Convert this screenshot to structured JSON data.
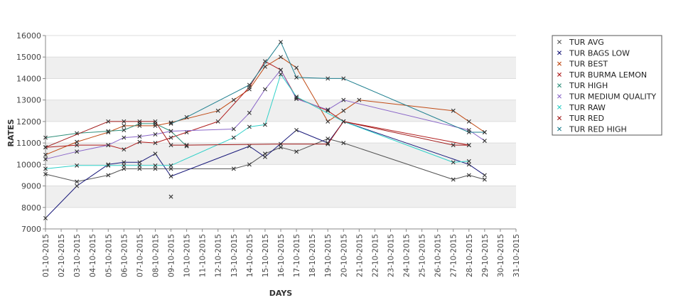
{
  "chart_data": {
    "type": "line",
    "title": "",
    "xlabel": "DAYS",
    "ylabel": "RATES",
    "ylim": [
      7000,
      16000
    ],
    "yticks": [
      7000,
      8000,
      9000,
      10000,
      11000,
      12000,
      13000,
      14000,
      15000,
      16000
    ],
    "x_ticks": [
      "01-10-2015",
      "02-10-2015",
      "03-10-2015",
      "04-10-2015",
      "05-10-2015",
      "06-10-2015",
      "07-10-2015",
      "08-10-2015",
      "09-10-2015",
      "10-10-2015",
      "11-10-2015",
      "12-10-2015",
      "13-10-2015",
      "14-10-2015",
      "15-10-2015",
      "16-10-2015",
      "17-10-2015",
      "18-10-2015",
      "19-10-2015",
      "20-10-2015",
      "21-10-2015",
      "22-10-2015",
      "23-10-2015",
      "24-10-2015",
      "25-10-2015",
      "26-10-2015",
      "27-10-2015",
      "28-10-2015",
      "29-10-2015",
      "30-10-2015",
      "31-10-2015"
    ],
    "grid": true,
    "legend_position": "right",
    "series": [
      {
        "name": "TUR AVG",
        "color": "#555555",
        "points": [
          [
            "01-10-2015",
            9550
          ],
          [
            "03-10-2015",
            9200
          ],
          [
            "05-10-2015",
            9500
          ],
          [
            "06-10-2015",
            9800
          ],
          [
            "07-10-2015",
            9800
          ],
          [
            "08-10-2015",
            9800
          ],
          [
            "09-10-2015",
            9800
          ],
          [
            "13-10-2015",
            9800
          ],
          [
            "14-10-2015",
            10000
          ],
          [
            "15-10-2015",
            10500
          ],
          [
            "16-10-2015",
            10800
          ],
          [
            "17-10-2015",
            10600
          ],
          [
            "19-10-2015",
            11200
          ],
          [
            "20-10-2015",
            11000
          ],
          [
            "27-10-2015",
            9300
          ],
          [
            "28-10-2015",
            9500
          ],
          [
            "29-10-2015",
            9300
          ]
        ]
      },
      {
        "name": "TUR BAGS LOW",
        "color": "#1a1a7a",
        "points": [
          [
            "01-10-2015",
            7500
          ],
          [
            "03-10-2015",
            9000
          ],
          [
            "05-10-2015",
            10000
          ],
          [
            "06-10-2015",
            10100
          ],
          [
            "07-10-2015",
            10100
          ],
          [
            "08-10-2015",
            10500
          ],
          [
            "09-10-2015",
            9450
          ],
          [
            "14-10-2015",
            10850
          ],
          [
            "15-10-2015",
            10350
          ],
          [
            "17-10-2015",
            11600
          ],
          [
            "19-10-2015",
            11000
          ],
          [
            "20-10-2015",
            12000
          ],
          [
            "28-10-2015",
            10000
          ],
          [
            "29-10-2015",
            9500
          ]
        ]
      },
      {
        "name": "TUR BEST",
        "color": "#c04a14",
        "points": [
          [
            "01-10-2015",
            10450
          ],
          [
            "03-10-2015",
            11050
          ],
          [
            "05-10-2015",
            11500
          ],
          [
            "06-10-2015",
            11800
          ],
          [
            "07-10-2015",
            11800
          ],
          [
            "08-10-2015",
            11800
          ],
          [
            "09-10-2015",
            11950
          ],
          [
            "12-10-2015",
            12500
          ],
          [
            "13-10-2015",
            13000
          ],
          [
            "14-10-2015",
            13500
          ],
          [
            "15-10-2015",
            14550
          ],
          [
            "16-10-2015",
            15000
          ],
          [
            "17-10-2015",
            14500
          ],
          [
            "19-10-2015",
            12000
          ],
          [
            "20-10-2015",
            12500
          ],
          [
            "21-10-2015",
            13000
          ],
          [
            "27-10-2015",
            12500
          ],
          [
            "28-10-2015",
            12000
          ],
          [
            "29-10-2015",
            11500
          ]
        ]
      },
      {
        "name": "TUR BURMA LEMON",
        "color": "#b01c1c",
        "points": [
          [
            "01-10-2015",
            10800
          ],
          [
            "03-10-2015",
            10900
          ],
          [
            "05-10-2015",
            10900
          ],
          [
            "06-10-2015",
            10700
          ],
          [
            "07-10-2015",
            11050
          ],
          [
            "08-10-2015",
            11000
          ],
          [
            "09-10-2015",
            11250
          ],
          [
            "10-10-2015",
            11500
          ],
          [
            "12-10-2015",
            12000
          ],
          [
            "14-10-2015",
            13600
          ],
          [
            "15-10-2015",
            14800
          ],
          [
            "16-10-2015",
            14400
          ],
          [
            "17-10-2015",
            13100
          ],
          [
            "19-10-2015",
            12500
          ],
          [
            "20-10-2015",
            12000
          ],
          [
            "28-10-2015",
            10900
          ]
        ]
      },
      {
        "name": "TUR HIGH",
        "color": "#2f8f7a",
        "points": [
          [
            "01-10-2015",
            11250
          ],
          [
            "03-10-2015",
            11450
          ],
          [
            "05-10-2015",
            11550
          ],
          [
            "06-10-2015",
            11600
          ],
          [
            "07-10-2015",
            11900
          ],
          [
            "08-10-2015",
            11900
          ],
          [
            "09-10-2015",
            11550
          ],
          [
            "10-10-2015",
            10850
          ]
        ]
      },
      {
        "name": "TUR MEDIUM QUALITY",
        "color": "#8a66c8",
        "points": [
          [
            "01-10-2015",
            10250
          ],
          [
            "03-10-2015",
            10600
          ],
          [
            "05-10-2015",
            10900
          ],
          [
            "06-10-2015",
            11250
          ],
          [
            "07-10-2015",
            11300
          ],
          [
            "08-10-2015",
            11400
          ],
          [
            "09-10-2015",
            11550
          ],
          [
            "13-10-2015",
            11650
          ],
          [
            "14-10-2015",
            12400
          ],
          [
            "15-10-2015",
            13500
          ],
          [
            "16-10-2015",
            14400
          ],
          [
            "17-10-2015",
            13050
          ],
          [
            "19-10-2015",
            12550
          ],
          [
            "20-10-2015",
            13000
          ],
          [
            "28-10-2015",
            11600
          ],
          [
            "29-10-2015",
            11100
          ]
        ]
      },
      {
        "name": "TUR RAW",
        "color": "#2fd0c8",
        "points": [
          [
            "01-10-2015",
            9800
          ],
          [
            "03-10-2015",
            9950
          ],
          [
            "05-10-2015",
            9950
          ],
          [
            "06-10-2015",
            9950
          ],
          [
            "07-10-2015",
            9950
          ],
          [
            "08-10-2015",
            9950
          ],
          [
            "09-10-2015",
            9950
          ],
          [
            "13-10-2015",
            11250
          ],
          [
            "14-10-2015",
            11750
          ],
          [
            "15-10-2015",
            11850
          ],
          [
            "16-10-2015",
            14200
          ],
          [
            "17-10-2015",
            13150
          ],
          [
            "20-10-2015",
            12000
          ],
          [
            "27-10-2015",
            10100
          ],
          [
            "28-10-2015",
            10150
          ]
        ]
      },
      {
        "name": "TUR RED",
        "color": "#a01818",
        "points": [
          [
            "01-10-2015",
            10800
          ],
          [
            "05-10-2015",
            12000
          ],
          [
            "06-10-2015",
            12000
          ],
          [
            "07-10-2015",
            12000
          ],
          [
            "08-10-2015",
            12000
          ],
          [
            "09-10-2015",
            10900
          ],
          [
            "10-10-2015",
            10900
          ],
          [
            "16-10-2015",
            10950
          ],
          [
            "19-10-2015",
            10950
          ],
          [
            "20-10-2015",
            12000
          ],
          [
            "27-10-2015",
            10900
          ],
          [
            "28-10-2015",
            10900
          ]
        ]
      },
      {
        "name": "TUR RED HIGH",
        "color": "#1f7f8f",
        "points": [
          [
            "09-10-2015",
            11900
          ],
          [
            "10-10-2015",
            12200
          ],
          [
            "14-10-2015",
            13700
          ],
          [
            "16-10-2015",
            15700
          ],
          [
            "17-10-2015",
            14050
          ],
          [
            "19-10-2015",
            14000
          ],
          [
            "20-10-2015",
            14000
          ],
          [
            "28-10-2015",
            11500
          ],
          [
            "29-10-2015",
            11500
          ]
        ]
      }
    ],
    "markers": [
      {
        "x": "09-10-2015",
        "y": 8500,
        "color": "#555555"
      }
    ]
  }
}
